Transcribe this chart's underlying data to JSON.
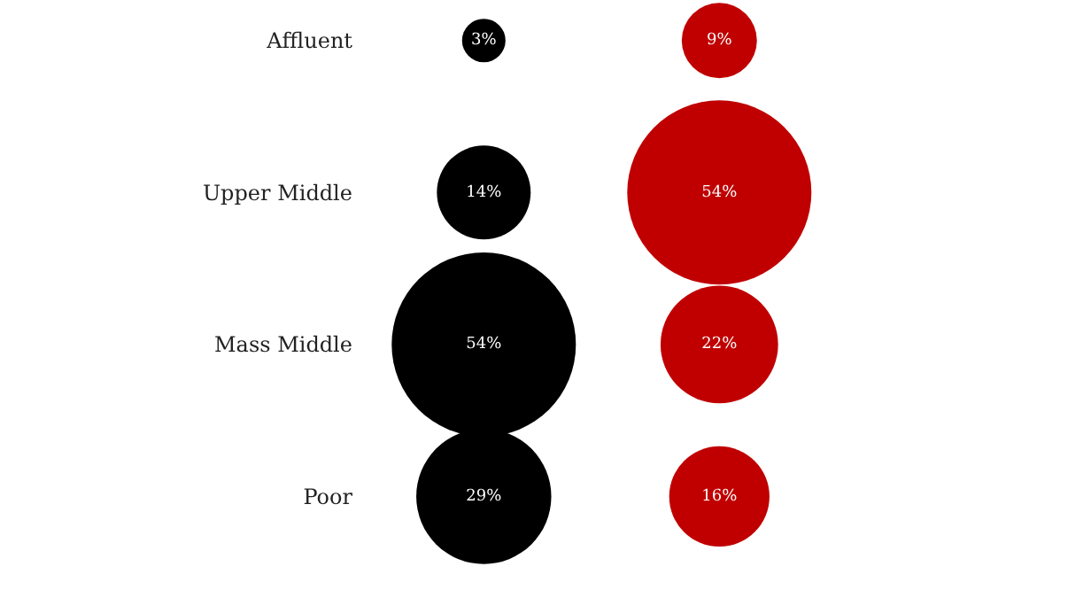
{
  "chart_data": {
    "type": "other",
    "categories": [
      "Affluent",
      "Upper Middle",
      "Mass Middle",
      "Poor"
    ],
    "series": [
      {
        "color": "#000000",
        "values": [
          3,
          14,
          54,
          29
        ],
        "value_labels": [
          "3%",
          "14%",
          "54%",
          "29%"
        ]
      },
      {
        "color": "#c00000",
        "values": [
          9,
          54,
          22,
          16
        ],
        "value_labels": [
          "9%",
          "54%",
          "22%",
          "16%"
        ]
      }
    ]
  }
}
